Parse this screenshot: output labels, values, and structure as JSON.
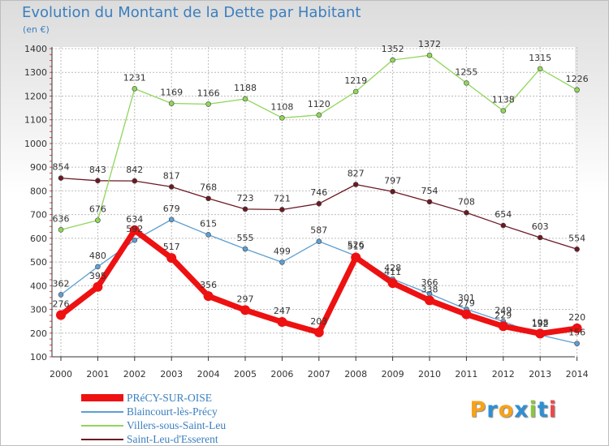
{
  "title": "Evolution du Montant de la Dette par Habitant",
  "unit": "(en €)",
  "brand": "Proxiti",
  "colors": {
    "title": "#3b7fbf",
    "axis": "#333333",
    "grid": "#bcbcbc",
    "tick_red": "#e0434d"
  },
  "chart_data": {
    "type": "line",
    "title": "Evolution du Montant de la Dette par Habitant",
    "ylabel": "(en €)",
    "xlabel": "",
    "x": [
      "2000",
      "2001",
      "2002",
      "2003",
      "2004",
      "2005",
      "2006",
      "2007",
      "2008",
      "2009",
      "2010",
      "2011",
      "2012",
      "2013",
      "2014"
    ],
    "ylim": [
      100,
      1400
    ],
    "yticks": [
      100,
      200,
      300,
      400,
      500,
      600,
      700,
      800,
      900,
      1000,
      1100,
      1200,
      1300,
      1400
    ],
    "grid": true,
    "legend_position": "bottom-left",
    "series": [
      {
        "name": "Saint-Leu-d'Esserent",
        "color": "#6b1a22",
        "values": [
          854,
          843,
          842,
          817,
          768,
          723,
          721,
          746,
          827,
          797,
          754,
          708,
          654,
          603,
          554
        ]
      },
      {
        "name": "Villers-sous-Saint-Leu",
        "color": "#8fd65a",
        "values": [
          636,
          676,
          1231,
          1169,
          1166,
          1188,
          1108,
          1120,
          1219,
          1352,
          1372,
          1255,
          1138,
          1315,
          1226
        ]
      },
      {
        "name": "Blaincourt-lès-Précy",
        "color": "#5d9fd3",
        "values": [
          362,
          480,
          592,
          679,
          615,
          555,
          499,
          587,
          526,
          428,
          366,
          301,
          249,
          192,
          156
        ]
      },
      {
        "name": "PRéCY-SUR-OISE",
        "color": "#ee1111",
        "values": [
          276,
          395,
          634,
          517,
          356,
          297,
          247,
          203,
          519,
          411,
          338,
          279,
          229,
          198,
          220
        ]
      }
    ]
  }
}
